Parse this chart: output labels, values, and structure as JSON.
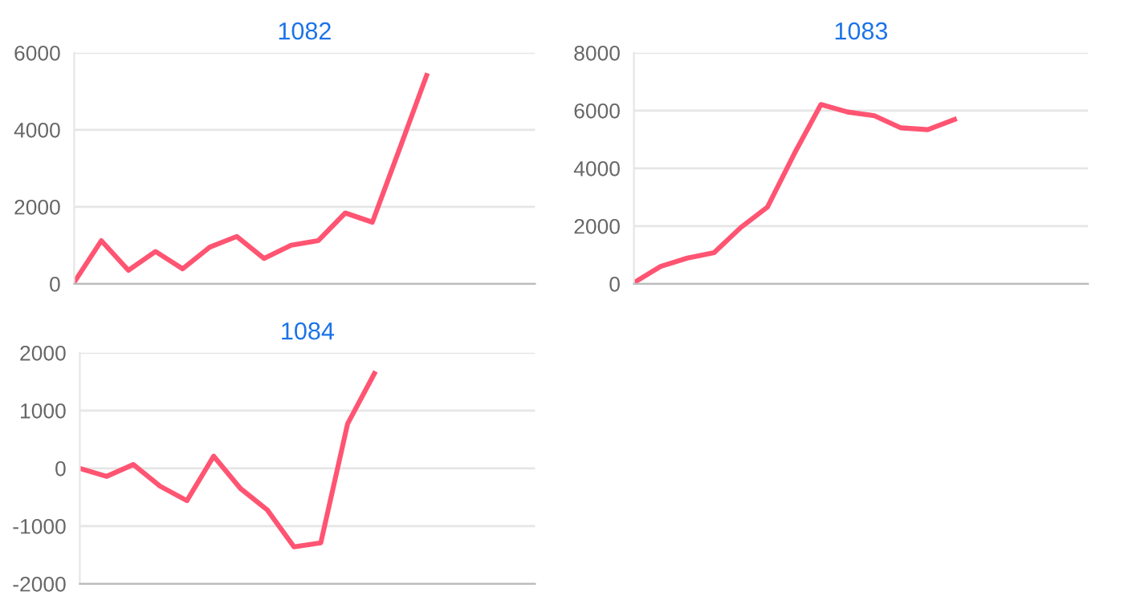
{
  "chart_data": [
    {
      "type": "line",
      "title": "1082",
      "categories": [
        null,
        null,
        null,
        null,
        null,
        null,
        null,
        null,
        null,
        null,
        null,
        null,
        null,
        null,
        null,
        null,
        null,
        null
      ],
      "series": [
        {
          "color": "#ff5472",
          "values": [
            40,
            1120,
            350,
            840,
            390,
            950,
            1230,
            660,
            1000,
            1120,
            1840,
            1600,
            3500,
            5410,
            null,
            null,
            null,
            null
          ]
        }
      ],
      "ylim": [
        0,
        6000
      ],
      "yticks": [
        0,
        2000,
        4000,
        6000
      ],
      "grid": "y",
      "marker": "none",
      "line_style": "solid",
      "legend": false
    },
    {
      "type": "line",
      "title": "1083",
      "categories": [
        null,
        null,
        null,
        null,
        null,
        null,
        null,
        null,
        null,
        null,
        null,
        null,
        null,
        null,
        null,
        null,
        null,
        null
      ],
      "series": [
        {
          "color": "#ff5472",
          "values": [
            40,
            600,
            890,
            1080,
            1950,
            2660,
            4500,
            6210,
            5950,
            5820,
            5400,
            5340,
            5690,
            null,
            null,
            null,
            null,
            null
          ]
        }
      ],
      "ylim": [
        0,
        8000
      ],
      "yticks": [
        0,
        2000,
        4000,
        6000,
        8000
      ],
      "grid": "y",
      "marker": "none",
      "line_style": "solid",
      "legend": false
    },
    {
      "type": "line",
      "title": "1084",
      "categories": [
        null,
        null,
        null,
        null,
        null,
        null,
        null,
        null,
        null,
        null,
        null,
        null,
        null,
        null,
        null,
        null,
        null,
        null
      ],
      "series": [
        {
          "color": "#ff5472",
          "values": [
            0,
            -140,
            65,
            -310,
            -560,
            210,
            -350,
            -720,
            -1360,
            -1290,
            770,
            1640,
            null,
            null,
            null,
            null,
            null,
            null
          ]
        }
      ],
      "ylim": [
        -2000,
        2000
      ],
      "yticks": [
        -2000,
        -1000,
        0,
        1000,
        2000
      ],
      "grid": "y",
      "marker": "none",
      "line_style": "solid",
      "legend": false
    }
  ]
}
